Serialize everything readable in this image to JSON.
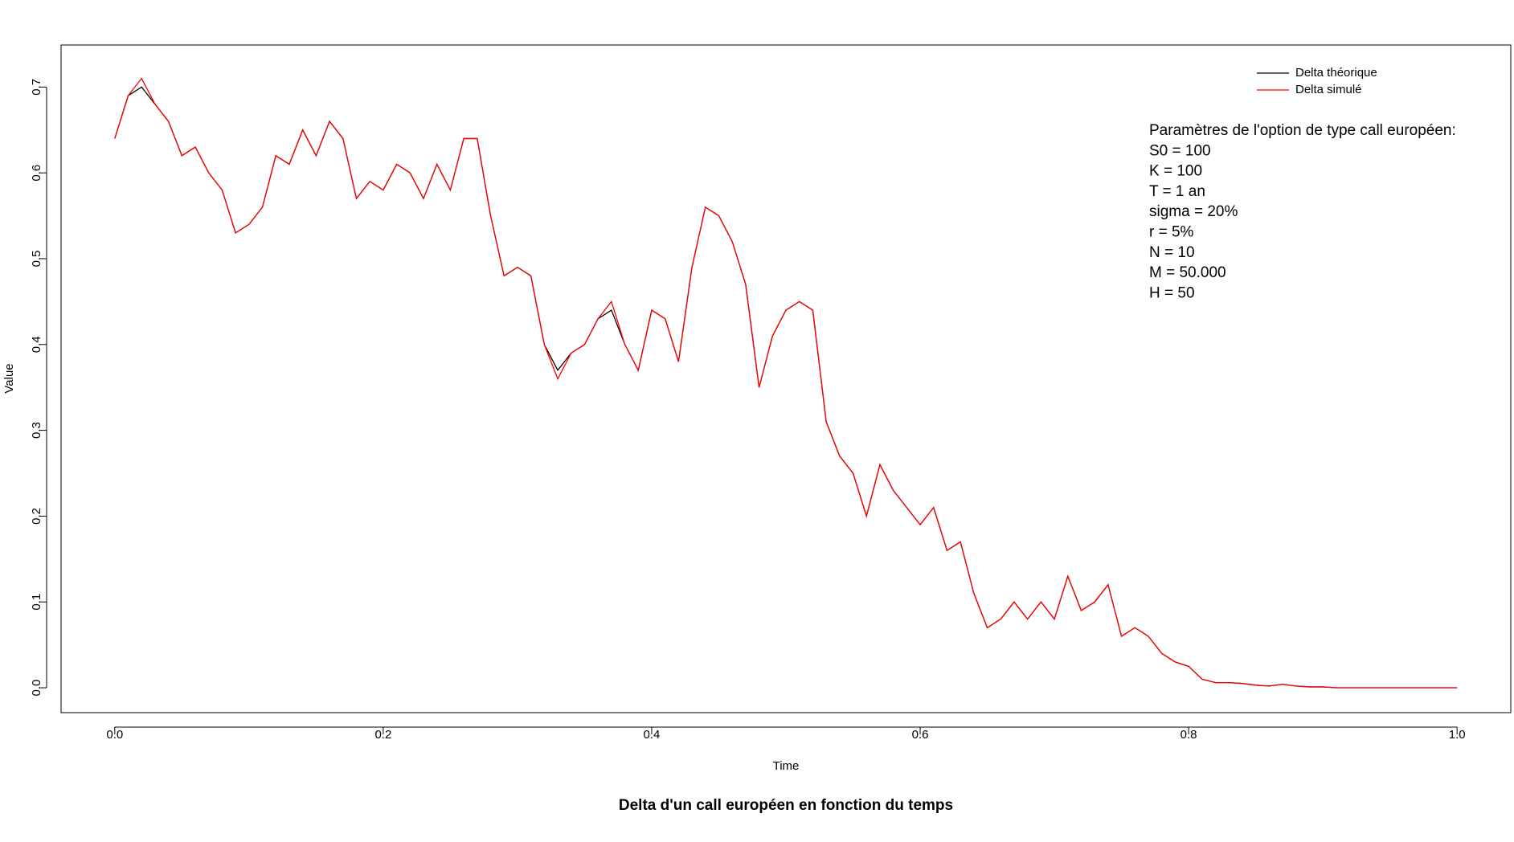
{
  "chart_data": {
    "type": "line",
    "title": "Delta d'un call européen en fonction du temps",
    "x_label": "Time",
    "y_label": "Value",
    "x": [
      0.0,
      0.01,
      0.02,
      0.03,
      0.04,
      0.05,
      0.06,
      0.07,
      0.08,
      0.09,
      0.1,
      0.11,
      0.12,
      0.13,
      0.14,
      0.15,
      0.16,
      0.17,
      0.18,
      0.19,
      0.2,
      0.21,
      0.22,
      0.23,
      0.24,
      0.25,
      0.26,
      0.27,
      0.28,
      0.29,
      0.3,
      0.31,
      0.32,
      0.33,
      0.34,
      0.35,
      0.36,
      0.37,
      0.38,
      0.39,
      0.4,
      0.41,
      0.42,
      0.43,
      0.44,
      0.45,
      0.46,
      0.47,
      0.48,
      0.49,
      0.5,
      0.51,
      0.52,
      0.53,
      0.54,
      0.55,
      0.56,
      0.57,
      0.58,
      0.59,
      0.6,
      0.61,
      0.62,
      0.63,
      0.64,
      0.65,
      0.66,
      0.67,
      0.68,
      0.69,
      0.7,
      0.71,
      0.72,
      0.73,
      0.74,
      0.75,
      0.76,
      0.77,
      0.78,
      0.79,
      0.8,
      0.81,
      0.82,
      0.83,
      0.84,
      0.85,
      0.86,
      0.87,
      0.88,
      0.89,
      0.9,
      0.91,
      0.92,
      0.93,
      0.94,
      0.95,
      0.96,
      0.97,
      0.98,
      0.99,
      1.0
    ],
    "series": [
      {
        "name": "Delta théorique",
        "color": "#000000",
        "values": [
          0.64,
          0.69,
          0.7,
          0.68,
          0.66,
          0.62,
          0.63,
          0.6,
          0.58,
          0.53,
          0.54,
          0.56,
          0.62,
          0.61,
          0.65,
          0.62,
          0.66,
          0.64,
          0.57,
          0.59,
          0.58,
          0.61,
          0.6,
          0.57,
          0.61,
          0.58,
          0.64,
          0.64,
          0.55,
          0.48,
          0.49,
          0.48,
          0.4,
          0.37,
          0.39,
          0.4,
          0.43,
          0.44,
          0.4,
          0.37,
          0.44,
          0.43,
          0.38,
          0.49,
          0.56,
          0.55,
          0.52,
          0.47,
          0.35,
          0.41,
          0.44,
          0.45,
          0.44,
          0.31,
          0.27,
          0.25,
          0.2,
          0.26,
          0.23,
          0.21,
          0.19,
          0.21,
          0.16,
          0.17,
          0.11,
          0.07,
          0.08,
          0.1,
          0.08,
          0.1,
          0.08,
          0.13,
          0.09,
          0.1,
          0.12,
          0.06,
          0.07,
          0.06,
          0.04,
          0.03,
          0.025,
          0.01,
          0.006,
          0.006,
          0.005,
          0.003,
          0.002,
          0.004,
          0.002,
          0.001,
          0.001,
          0,
          0,
          0,
          0,
          0,
          0,
          0,
          0,
          0,
          0
        ]
      },
      {
        "name": "Delta simulé",
        "color": "#ff0000",
        "values": [
          0.64,
          0.69,
          0.71,
          0.68,
          0.66,
          0.62,
          0.63,
          0.6,
          0.58,
          0.53,
          0.54,
          0.56,
          0.62,
          0.61,
          0.65,
          0.62,
          0.66,
          0.64,
          0.57,
          0.59,
          0.58,
          0.61,
          0.6,
          0.57,
          0.61,
          0.58,
          0.64,
          0.64,
          0.55,
          0.48,
          0.49,
          0.48,
          0.4,
          0.36,
          0.39,
          0.4,
          0.43,
          0.45,
          0.4,
          0.37,
          0.44,
          0.43,
          0.38,
          0.49,
          0.56,
          0.55,
          0.52,
          0.47,
          0.35,
          0.41,
          0.44,
          0.45,
          0.44,
          0.31,
          0.27,
          0.25,
          0.2,
          0.26,
          0.23,
          0.21,
          0.19,
          0.21,
          0.16,
          0.17,
          0.11,
          0.07,
          0.08,
          0.1,
          0.08,
          0.1,
          0.08,
          0.13,
          0.09,
          0.1,
          0.12,
          0.06,
          0.07,
          0.06,
          0.04,
          0.03,
          0.025,
          0.01,
          0.006,
          0.006,
          0.005,
          0.003,
          0.002,
          0.004,
          0.002,
          0.001,
          0.001,
          0,
          0,
          0,
          0,
          0,
          0,
          0,
          0,
          0,
          0
        ]
      }
    ],
    "xlim": [
      -0.04,
      1.04
    ],
    "ylim": [
      -0.029,
      0.749
    ],
    "xticks": [
      {
        "value": 0,
        "label": "0.0"
      },
      {
        "value": 0.2,
        "label": "0.2"
      },
      {
        "value": 0.4,
        "label": "0.4"
      },
      {
        "value": 0.6,
        "label": "0.6"
      },
      {
        "value": 0.8,
        "label": "0.8"
      },
      {
        "value": 1,
        "label": "1.0"
      }
    ],
    "yticks": [
      {
        "value": 0,
        "label": "0.0"
      },
      {
        "value": 0.1,
        "label": "0.1"
      },
      {
        "value": 0.2,
        "label": "0.2"
      },
      {
        "value": 0.3,
        "label": "0.3"
      },
      {
        "value": 0.4,
        "label": "0.4"
      },
      {
        "value": 0.5,
        "label": "0.5"
      },
      {
        "value": 0.6,
        "label": "0.6"
      },
      {
        "value": 0.7,
        "label": "0.7"
      }
    ],
    "legend_position": "topright",
    "annotations": [
      "Paramètres de l'option de type call européen:",
      "S0 = 100",
      "K = 100",
      "T = 1 an",
      "sigma = 20%",
      "r = 5%",
      "N = 10",
      "M = 50.000",
      "H = 50"
    ]
  }
}
